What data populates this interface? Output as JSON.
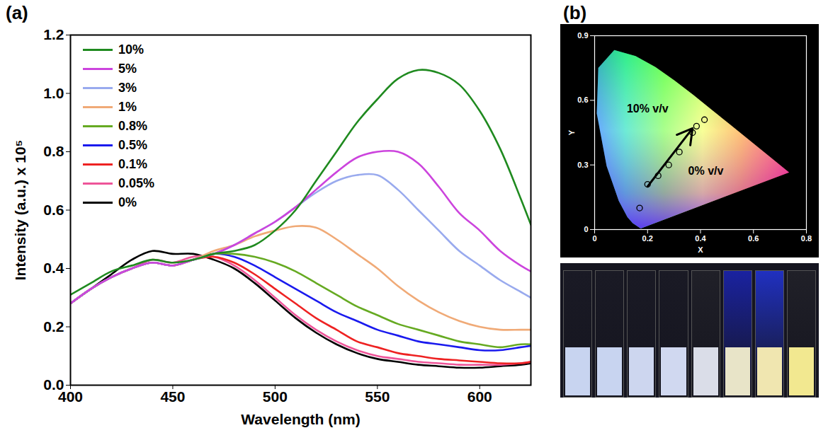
{
  "chart_data": [
    {
      "type": "line",
      "title": "(a)",
      "xlabel": "Wavelength (nm)",
      "ylabel": "Intensity (a.u.) x 10⁵",
      "x": [
        400,
        410,
        420,
        430,
        440,
        450,
        460,
        470,
        480,
        490,
        500,
        510,
        520,
        530,
        540,
        550,
        560,
        570,
        580,
        590,
        600,
        610,
        620,
        625
      ],
      "series": [
        {
          "name": "10%",
          "color": "#1f8a1f",
          "values": [
            0.31,
            0.35,
            0.39,
            0.41,
            0.43,
            0.42,
            0.43,
            0.45,
            0.46,
            0.48,
            0.53,
            0.6,
            0.7,
            0.8,
            0.9,
            0.98,
            1.05,
            1.08,
            1.07,
            1.03,
            0.94,
            0.81,
            0.64,
            0.55
          ]
        },
        {
          "name": "5%",
          "color": "#cc44dd",
          "values": [
            0.28,
            0.33,
            0.37,
            0.4,
            0.42,
            0.41,
            0.43,
            0.45,
            0.48,
            0.52,
            0.56,
            0.61,
            0.67,
            0.73,
            0.78,
            0.8,
            0.8,
            0.76,
            0.68,
            0.59,
            0.53,
            0.46,
            0.41,
            0.39
          ]
        },
        {
          "name": "3%",
          "color": "#99aaee",
          "values": [
            0.28,
            0.33,
            0.37,
            0.4,
            0.42,
            0.41,
            0.43,
            0.45,
            0.48,
            0.52,
            0.56,
            0.61,
            0.66,
            0.7,
            0.72,
            0.72,
            0.67,
            0.6,
            0.53,
            0.46,
            0.41,
            0.36,
            0.32,
            0.3
          ]
        },
        {
          "name": "1%",
          "color": "#f0aa77",
          "values": [
            0.28,
            0.33,
            0.37,
            0.4,
            0.42,
            0.41,
            0.43,
            0.46,
            0.48,
            0.51,
            0.53,
            0.545,
            0.54,
            0.5,
            0.45,
            0.4,
            0.34,
            0.29,
            0.25,
            0.22,
            0.2,
            0.19,
            0.19,
            0.19
          ]
        },
        {
          "name": "0.8%",
          "color": "#66aa22",
          "values": [
            0.28,
            0.33,
            0.37,
            0.4,
            0.42,
            0.41,
            0.43,
            0.45,
            0.45,
            0.44,
            0.42,
            0.39,
            0.35,
            0.31,
            0.27,
            0.24,
            0.21,
            0.19,
            0.17,
            0.15,
            0.14,
            0.13,
            0.14,
            0.14
          ]
        },
        {
          "name": "0.5%",
          "color": "#1a1aee",
          "values": [
            0.28,
            0.33,
            0.37,
            0.4,
            0.42,
            0.41,
            0.43,
            0.45,
            0.44,
            0.41,
            0.37,
            0.33,
            0.29,
            0.25,
            0.22,
            0.19,
            0.17,
            0.15,
            0.14,
            0.13,
            0.12,
            0.12,
            0.13,
            0.135
          ]
        },
        {
          "name": "0.1%",
          "color": "#ee2222",
          "values": [
            0.28,
            0.33,
            0.37,
            0.4,
            0.42,
            0.41,
            0.43,
            0.44,
            0.42,
            0.38,
            0.33,
            0.28,
            0.23,
            0.19,
            0.15,
            0.13,
            0.11,
            0.1,
            0.09,
            0.085,
            0.08,
            0.075,
            0.075,
            0.08
          ]
        },
        {
          "name": "0.05%",
          "color": "#ee5599",
          "values": [
            0.28,
            0.33,
            0.37,
            0.4,
            0.43,
            0.42,
            0.44,
            0.44,
            0.41,
            0.36,
            0.3,
            0.24,
            0.19,
            0.15,
            0.12,
            0.1,
            0.09,
            0.08,
            0.075,
            0.07,
            0.07,
            0.07,
            0.075,
            0.08
          ]
        },
        {
          "name": "0%",
          "color": "#000000",
          "values": [
            0.28,
            0.33,
            0.38,
            0.43,
            0.46,
            0.45,
            0.45,
            0.43,
            0.4,
            0.35,
            0.29,
            0.23,
            0.18,
            0.14,
            0.11,
            0.09,
            0.08,
            0.07,
            0.065,
            0.06,
            0.06,
            0.065,
            0.07,
            0.075
          ]
        }
      ],
      "xlim": [
        400,
        625
      ],
      "xticks": [
        400,
        450,
        500,
        550,
        600
      ],
      "ylim": [
        0,
        1.2
      ],
      "yticks": [
        {
          "value": 0,
          "label": "0.0"
        },
        0.2,
        0.4,
        0.6,
        0.8,
        {
          "value": 1,
          "label": "1.0"
        },
        1.2
      ],
      "grid": false,
      "legend": "top-left"
    },
    {
      "type": "scatter",
      "title": "(b)",
      "xlabel": "X",
      "ylabel": "Y",
      "x": [
        0.17,
        0.2,
        0.24,
        0.28,
        0.32,
        0.37,
        0.385,
        0.415
      ],
      "values": [
        0.1,
        0.21,
        0.25,
        0.3,
        0.36,
        0.45,
        0.48,
        0.51
      ],
      "marker": "circle",
      "xlim": [
        0,
        0.8
      ],
      "xticks": [
        0,
        0.2,
        0.4,
        0.6,
        0.8
      ],
      "ylim": [
        0,
        0.9
      ],
      "yticks": [
        0,
        0.3,
        0.6,
        0.9
      ],
      "grid": false,
      "annotations": [
        {
          "text": "10% v/v",
          "x": 0.2,
          "y": 0.56
        },
        {
          "text": "0% v/v",
          "x": 0.42,
          "y": 0.27
        }
      ],
      "arrows": [
        {
          "x1": 0.2,
          "y1": 0.2,
          "x2": 0.37,
          "y2": 0.47
        }
      ],
      "locus": {
        "x": [
          0.1741,
          0.144,
          0.1241,
          0.0913,
          0.0454,
          0.0082,
          0.0139,
          0.0743,
          0.1547,
          0.2296,
          0.3016,
          0.3731,
          0.4441,
          0.5125,
          0.5752,
          0.627,
          0.6658,
          0.7347
        ],
        "y": [
          0.005,
          0.0297,
          0.0578,
          0.1327,
          0.295,
          0.5384,
          0.7502,
          0.8338,
          0.8059,
          0.7543,
          0.6923,
          0.6245,
          0.5547,
          0.4866,
          0.4242,
          0.3725,
          0.334,
          0.2653
        ]
      }
    }
  ]
}
